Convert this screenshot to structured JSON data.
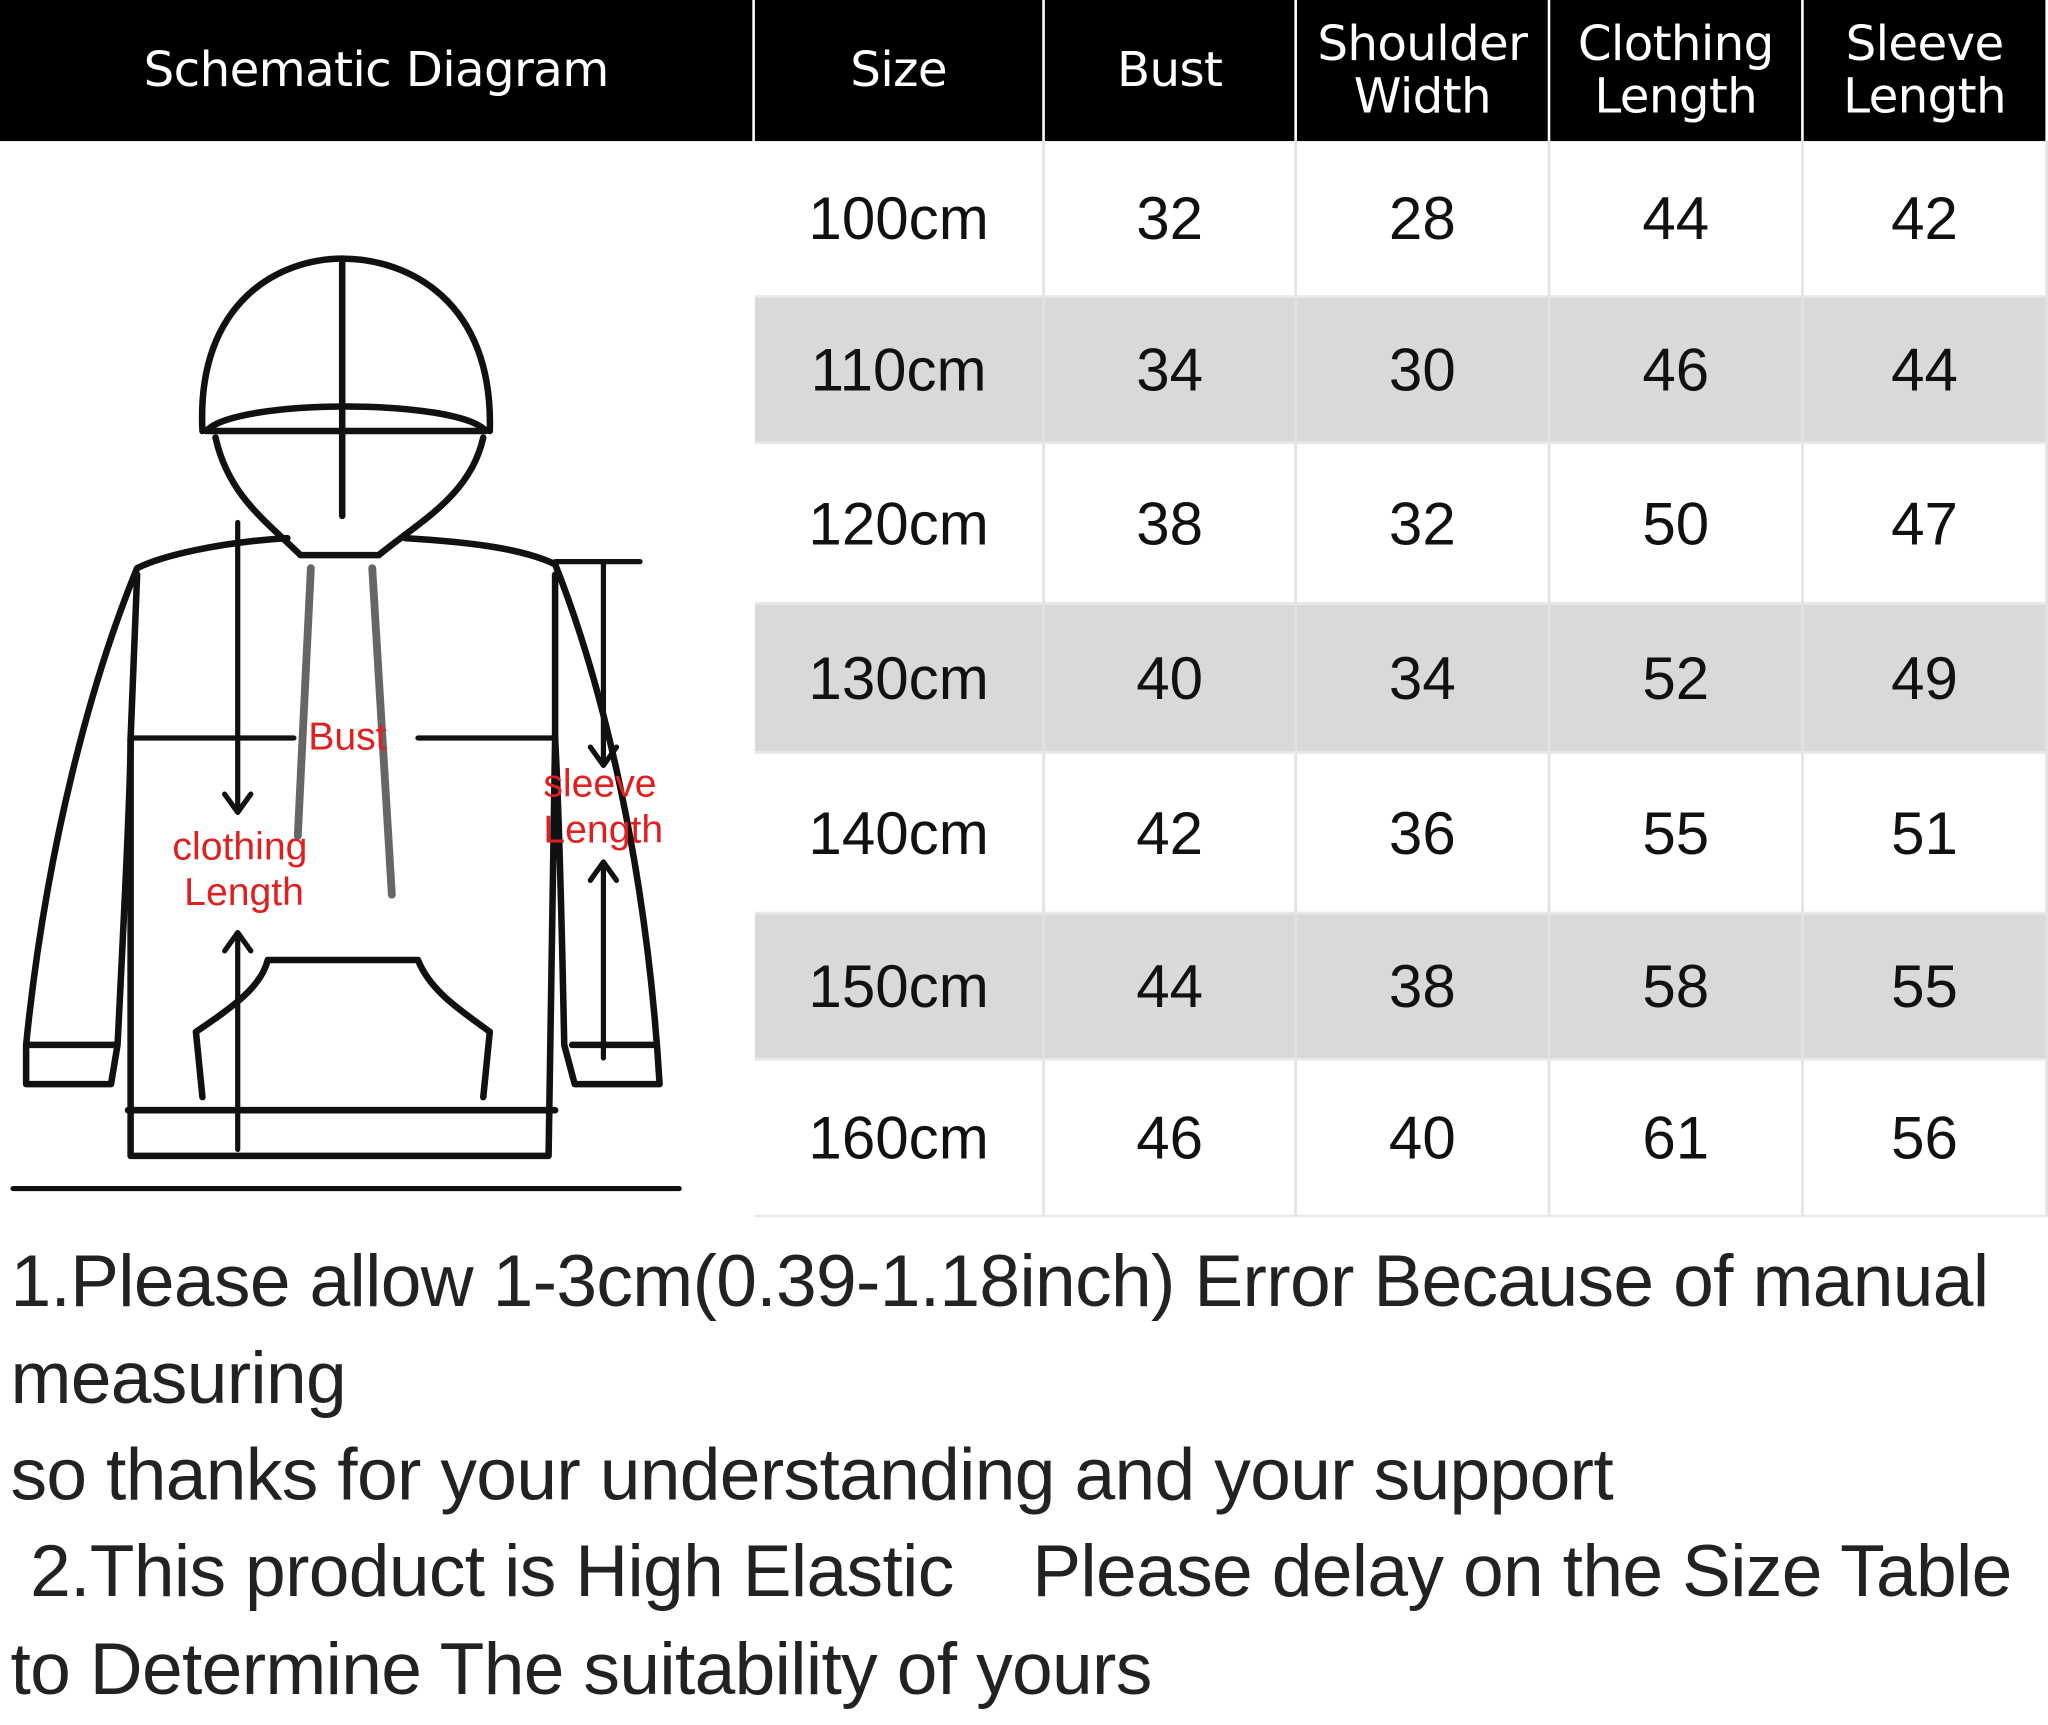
{
  "table": {
    "headers": [
      "Schematic Diagram",
      "Size",
      "Bust",
      "Shoulder Width",
      "Clothing Length",
      "Sleeve Length"
    ],
    "rows": [
      [
        "100cm",
        "32",
        "28",
        "44",
        "42"
      ],
      [
        "110cm",
        "34",
        "30",
        "46",
        "44"
      ],
      [
        "120cm",
        "38",
        "32",
        "50",
        "47"
      ],
      [
        "130cm",
        "40",
        "34",
        "52",
        "49"
      ],
      [
        "140cm",
        "42",
        "36",
        "55",
        "51"
      ],
      [
        "150cm",
        "44",
        "38",
        "58",
        "55"
      ],
      [
        "160cm",
        "46",
        "40",
        "61",
        "56"
      ]
    ]
  },
  "diagram": {
    "labels": {
      "bust": "Bust",
      "clothing": "clothing",
      "clothing_length": "Length",
      "sleeve": "sleeve",
      "sleeve_length": "Length"
    },
    "label_color": "#e02020"
  },
  "notes": [
    "1.Please allow 1-3cm(0.39-1.18inch) Error Because of manual",
    "measuring",
    "so thanks for your understanding and your support",
    " 2.This product is High Elastic    Please delay on the Size Table",
    "to Determine The suitability of yours"
  ],
  "colors": {
    "header_bg": "#000000",
    "stripe": "#d9d9d9"
  }
}
